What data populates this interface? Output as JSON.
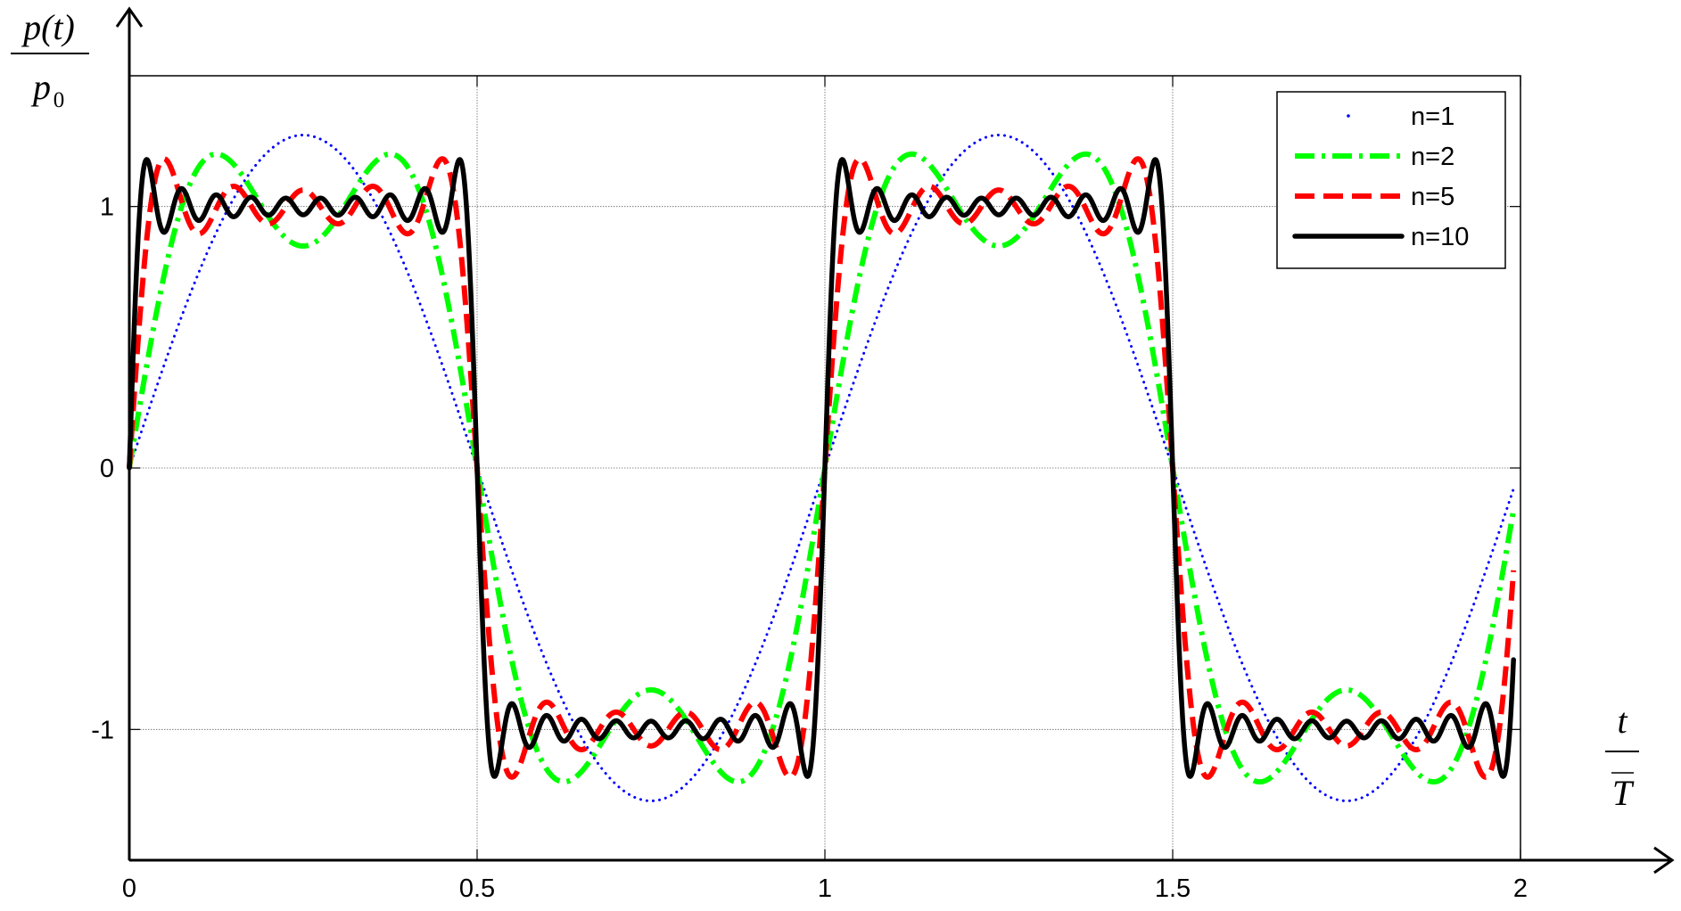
{
  "chart_data": {
    "type": "line",
    "title": "",
    "ylabel": {
      "numerator": "p(t)",
      "denominator": "p",
      "denominator_subscript": "0"
    },
    "xlabel": {
      "numerator": "t",
      "denominator": "T"
    },
    "xlim": [
      0,
      2
    ],
    "ylim": [
      -1.5,
      1.5
    ],
    "xticks": [
      0,
      0.5,
      1,
      1.5,
      2
    ],
    "xtick_labels": [
      "0",
      "0.5",
      "1",
      "1.5",
      "2"
    ],
    "yticks": [
      -1,
      0,
      1
    ],
    "ytick_labels": [
      "-1",
      "0",
      "1"
    ],
    "grid": true,
    "legend_position": "top-right",
    "series": [
      {
        "name": "n=1",
        "harmonics": 1,
        "color": "#0000ff",
        "style": "dotted"
      },
      {
        "name": "n=2",
        "harmonics": 2,
        "color": "#00ff00",
        "style": "dash-dot"
      },
      {
        "name": "n=5",
        "harmonics": 5,
        "color": "#ff0000",
        "style": "dashed"
      },
      {
        "name": "n=10",
        "harmonics": 10,
        "color": "#000000",
        "style": "solid"
      }
    ],
    "x_sample_range": [
      0,
      1.99
    ]
  }
}
